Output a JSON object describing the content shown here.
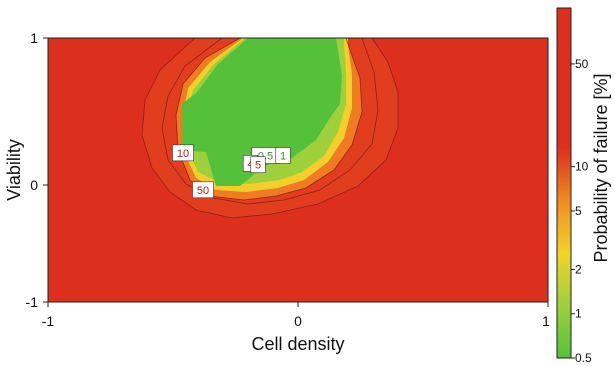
{
  "chart_data": {
    "type": "heatmap",
    "title": "",
    "xlabel": "Cell density",
    "ylabel": "Viability",
    "xlim": [
      -1,
      1
    ],
    "ylim": [
      -1,
      1
    ],
    "x_ticks": [
      "-1",
      "0",
      "1"
    ],
    "y_ticks": [
      "1",
      "0",
      "-1"
    ],
    "grid": false,
    "colorbar": {
      "label": "Probability of failure [%]",
      "scale": "log",
      "ticks": [
        "50",
        "10",
        "5",
        "2",
        "1",
        "0.5"
      ],
      "colors": {
        "low": "#55c13b",
        "mid_low": "#9ed03c",
        "mid": "#f3d22a",
        "mid_high": "#f08a22",
        "high": "#dd2f1e"
      }
    },
    "contour_levels": [
      "0.5",
      "1",
      "4",
      "5",
      "10",
      "50"
    ],
    "contour_labels": [
      {
        "text": "10",
        "x": -0.46,
        "y": 0.13,
        "color": "#b0221a"
      },
      {
        "text": "0.5",
        "x": -0.13,
        "y": 0.11,
        "color": "#3a8f25"
      },
      {
        "text": "1",
        "x": -0.06,
        "y": 0.11,
        "color": "#3a8f25"
      },
      {
        "text": "4",
        "x": -0.19,
        "y": 0.05,
        "color": "#b0221a"
      },
      {
        "text": "5",
        "x": -0.16,
        "y": 0.04,
        "color": "#b0221a"
      },
      {
        "text": "50",
        "x": -0.38,
        "y": -0.15,
        "color": "#b0221a"
      }
    ],
    "low_failure_region": {
      "x_range": [
        -0.46,
        0.2
      ],
      "y_range": [
        0.02,
        1.0
      ],
      "probability_percent": "0.5"
    },
    "background_probability_percent": "50"
  }
}
